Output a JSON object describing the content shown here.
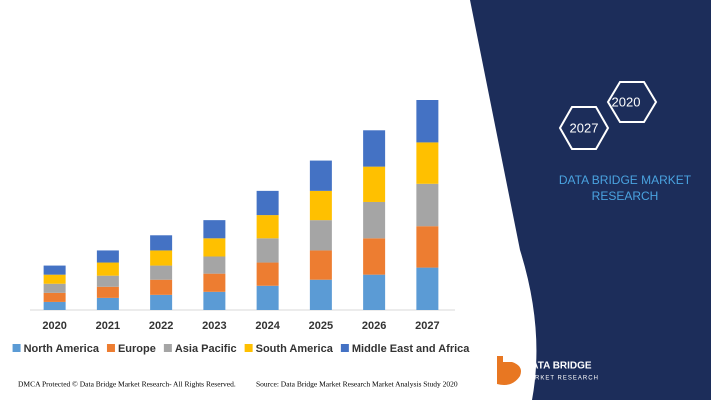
{
  "chart_data": {
    "type": "stacked-bar",
    "categories": [
      "2020",
      "2021",
      "2022",
      "2023",
      "2024",
      "2025",
      "2026",
      "2027"
    ],
    "series": [
      {
        "name": "North America",
        "color": "#5b9bd5",
        "values": [
          8,
          12,
          15,
          18,
          24,
          30,
          35,
          42
        ]
      },
      {
        "name": "Europe",
        "color": "#ed7d31",
        "values": [
          9,
          11,
          15,
          18,
          23,
          29,
          36,
          41
        ]
      },
      {
        "name": "Asia Pacific",
        "color": "#a5a5a5",
        "values": [
          9,
          11,
          14,
          17,
          24,
          30,
          36,
          42
        ]
      },
      {
        "name": "South America",
        "color": "#ffc000",
        "values": [
          9,
          13,
          15,
          18,
          23,
          29,
          35,
          41
        ]
      },
      {
        "name": "Middle East and Africa",
        "color": "#4472c4",
        "values": [
          9,
          12,
          15,
          18,
          24,
          30,
          36,
          42
        ]
      }
    ],
    "legend": "bottom"
  },
  "side_panel": {
    "hexagons": [
      "2020",
      "2027"
    ],
    "title": "DATA BRIDGE MARKET RESEARCH"
  },
  "logo": {
    "name": "DATA BRIDGE",
    "tagline": "MARKET RESEARCH"
  },
  "footer": {
    "left": "DMCA Protected © Data Bridge Market Research- All Rights Reserved.",
    "right": "Source: Data Bridge Market Research Market Analysis Study 2020"
  }
}
